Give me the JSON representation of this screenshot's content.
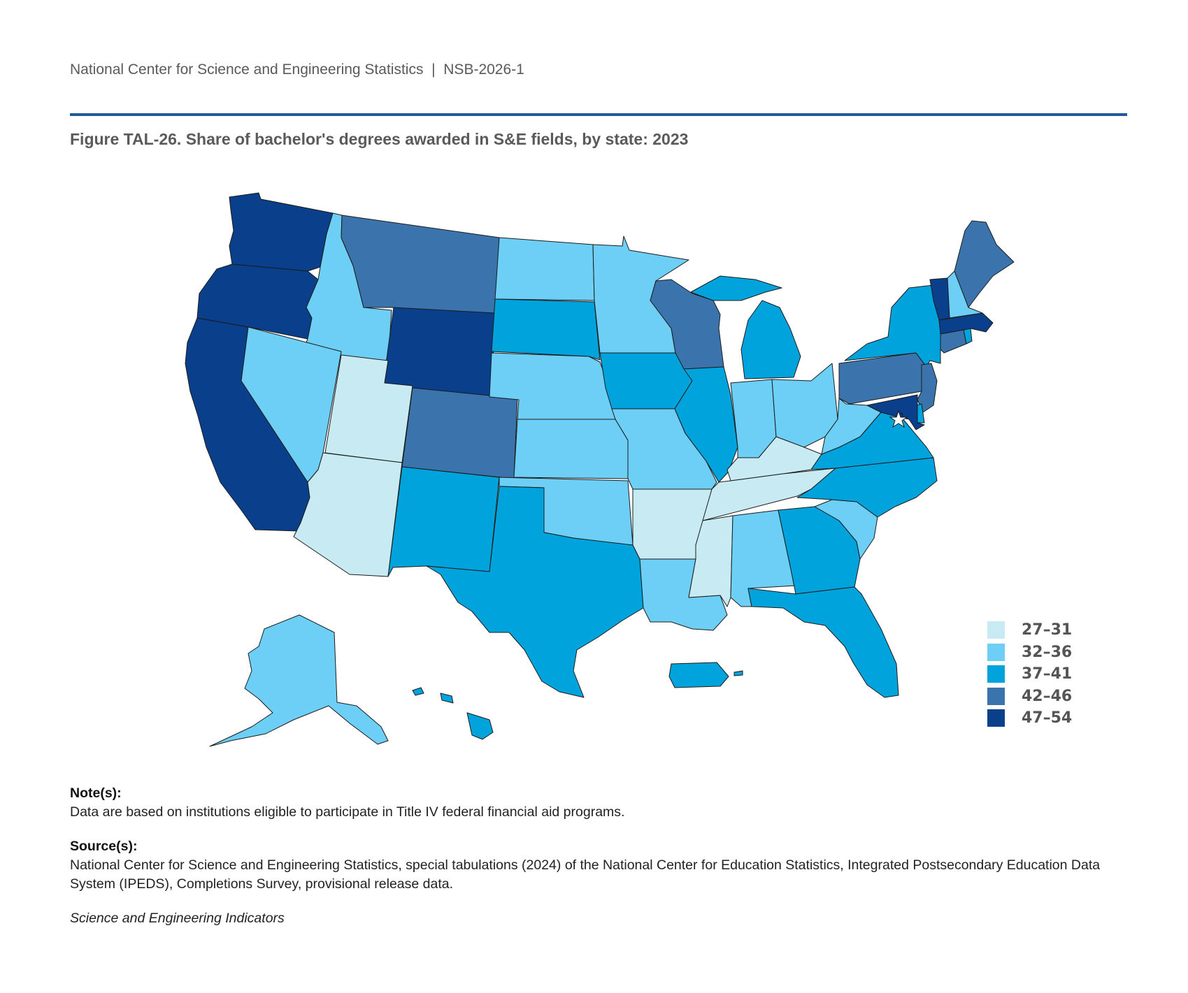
{
  "header": {
    "org": "National Center for Science and Engineering Statistics",
    "separator": "|",
    "report_id": "NSB-2026-1"
  },
  "figure": {
    "title": "Figure TAL-26. Share of bachelor's degrees awarded in S&E fields, by state: 2023"
  },
  "colors": {
    "c1": "#c8ebf3",
    "c2": "#6dcff6",
    "c3": "#00a3dc",
    "c4": "#3b74ad",
    "c5": "#0a3f8c",
    "rule": "#1f5a99"
  },
  "legend": [
    {
      "label": "27–31",
      "class": "c1"
    },
    {
      "label": "32–36",
      "class": "c2"
    },
    {
      "label": "37–41",
      "class": "c3"
    },
    {
      "label": "42–46",
      "class": "c4"
    },
    {
      "label": "47–54",
      "class": "c5"
    }
  ],
  "chart_data": {
    "type": "choropleth",
    "title": "Share of bachelor's degrees awarded in S&E fields, by state: 2023",
    "unit": "percent",
    "bins": [
      "27–31",
      "32–36",
      "37–41",
      "42–46",
      "47–54"
    ],
    "states": {
      "WA": "47–54",
      "OR": "47–54",
      "CA": "47–54",
      "ID": "32–36",
      "NV": "32–36",
      "MT": "42–46",
      "WY": "47–54",
      "UT": "27–31",
      "AZ": "27–31",
      "CO": "42–46",
      "NM": "37–41",
      "ND": "32–36",
      "SD": "37–41",
      "NE": "32–36",
      "KS": "32–36",
      "OK": "32–36",
      "TX": "37–41",
      "MN": "32–36",
      "IA": "37–41",
      "MO": "32–36",
      "AR": "27–31",
      "LA": "32–36",
      "WI": "42–46",
      "IL": "37–41",
      "MI": "37–41",
      "IN": "32–36",
      "OH": "32–36",
      "KY": "27–31",
      "TN": "27–31",
      "MS": "27–31",
      "AL": "32–36",
      "GA": "37–41",
      "FL": "37–41",
      "SC": "32–36",
      "NC": "37–41",
      "VA": "37–41",
      "WV": "32–36",
      "PA": "42–46",
      "NY": "37–41",
      "NJ": "42–46",
      "DE": "37–41",
      "MD": "47–54",
      "DC": "47–54",
      "CT": "42–46",
      "RI": "37–41",
      "MA": "47–54",
      "VT": "47–54",
      "NH": "32–36",
      "ME": "42–46",
      "AK": "32–36",
      "HI": "37–41",
      "PR": "37–41"
    }
  },
  "notes": {
    "notes_heading": "Note(s):",
    "notes_text": "Data are based on institutions eligible to participate in Title IV federal financial aid programs.",
    "source_heading": "Source(s):",
    "source_text": "National Center for Science and Engineering Statistics, special tabulations (2024) of the National Center for Education Statistics, Integrated Postsecondary Education Data System (IPEDS), Completions Survey, provisional release data.",
    "publication": "Science and Engineering Indicators"
  }
}
